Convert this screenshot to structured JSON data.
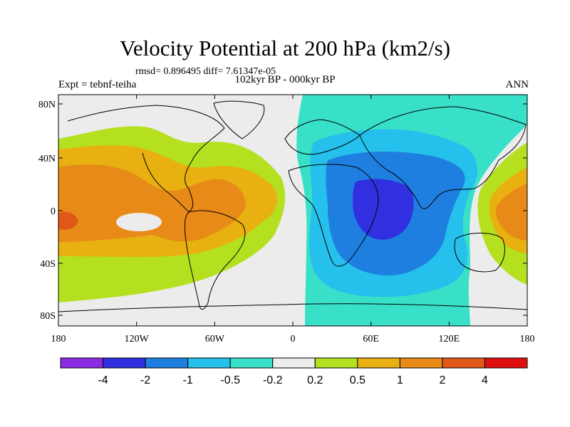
{
  "title": "Velocity Potential at 200 hPa (km2/s)",
  "stats_text": "rmsd= 0.896495 diff= 7.61347e-05",
  "subtitle": "102kyr BP - 000kyr BP",
  "left_label": "Expt = tebnf-teiha",
  "right_label": "ANN",
  "lat_ticks": [
    "80N",
    "40N",
    "0",
    "40S",
    "80S"
  ],
  "lon_ticks": [
    "180",
    "120W",
    "60W",
    "0",
    "60E",
    "120E",
    "180"
  ],
  "colorbar": {
    "labels": [
      "-4",
      "-2",
      "-1",
      "-0.5",
      "-0.2",
      "0.2",
      "0.5",
      "1",
      "2",
      "4"
    ],
    "colors": [
      "#8a2be2",
      "#3030e0",
      "#1f7fe0",
      "#25c0ec",
      "#38e0c8",
      "#ececec",
      "#b4e020",
      "#e8b010",
      "#e88a18",
      "#e05818",
      "#e01010"
    ]
  },
  "map_colors": {
    "neutral": "#ececec",
    "pos_02": "#b4e020",
    "pos_05": "#e8b010",
    "pos_1": "#e88a18",
    "pos_2": "#e05818",
    "neg_02": "#38e0c8",
    "neg_05": "#25c0ec",
    "neg_1": "#1f7fe0",
    "neg_2": "#3030e0"
  }
}
